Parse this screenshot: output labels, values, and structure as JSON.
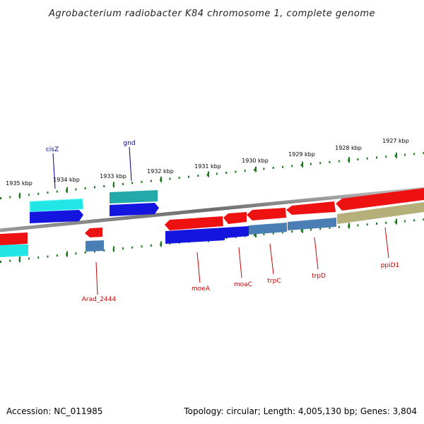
{
  "title": "Agrobacterium radiobacter K84 chromosome 1, complete genome",
  "footer": {
    "accession": "Accession: NC_011985",
    "summary": "Topology: circular; Length: 4,005,130 bp; Genes: 3,804"
  },
  "colors": {
    "backbone": "#808080",
    "tick": "#1a7a1a",
    "label_forward": "#00008b",
    "label_reverse": "#cc0000",
    "red": "#ee1111",
    "blue": "#1111dd",
    "cyan": "#22dddd",
    "teal": "#22aaaa",
    "steel": "#4a7fb5",
    "khaki": "#b5b07a"
  },
  "scale_labels": [
    "1927 kbp",
    "1928 kbp",
    "1929 kbp",
    "1930 kbp",
    "1931 kbp",
    "1932 kbp",
    "1933 kbp",
    "1934 kbp",
    "1935 kbp"
  ],
  "gene_labels": {
    "forward": [
      "cisZ",
      "gnd"
    ],
    "reverse": [
      "Arad_2444",
      "moeA",
      "moaC",
      "trpC",
      "trpD",
      "ppiD1"
    ]
  }
}
